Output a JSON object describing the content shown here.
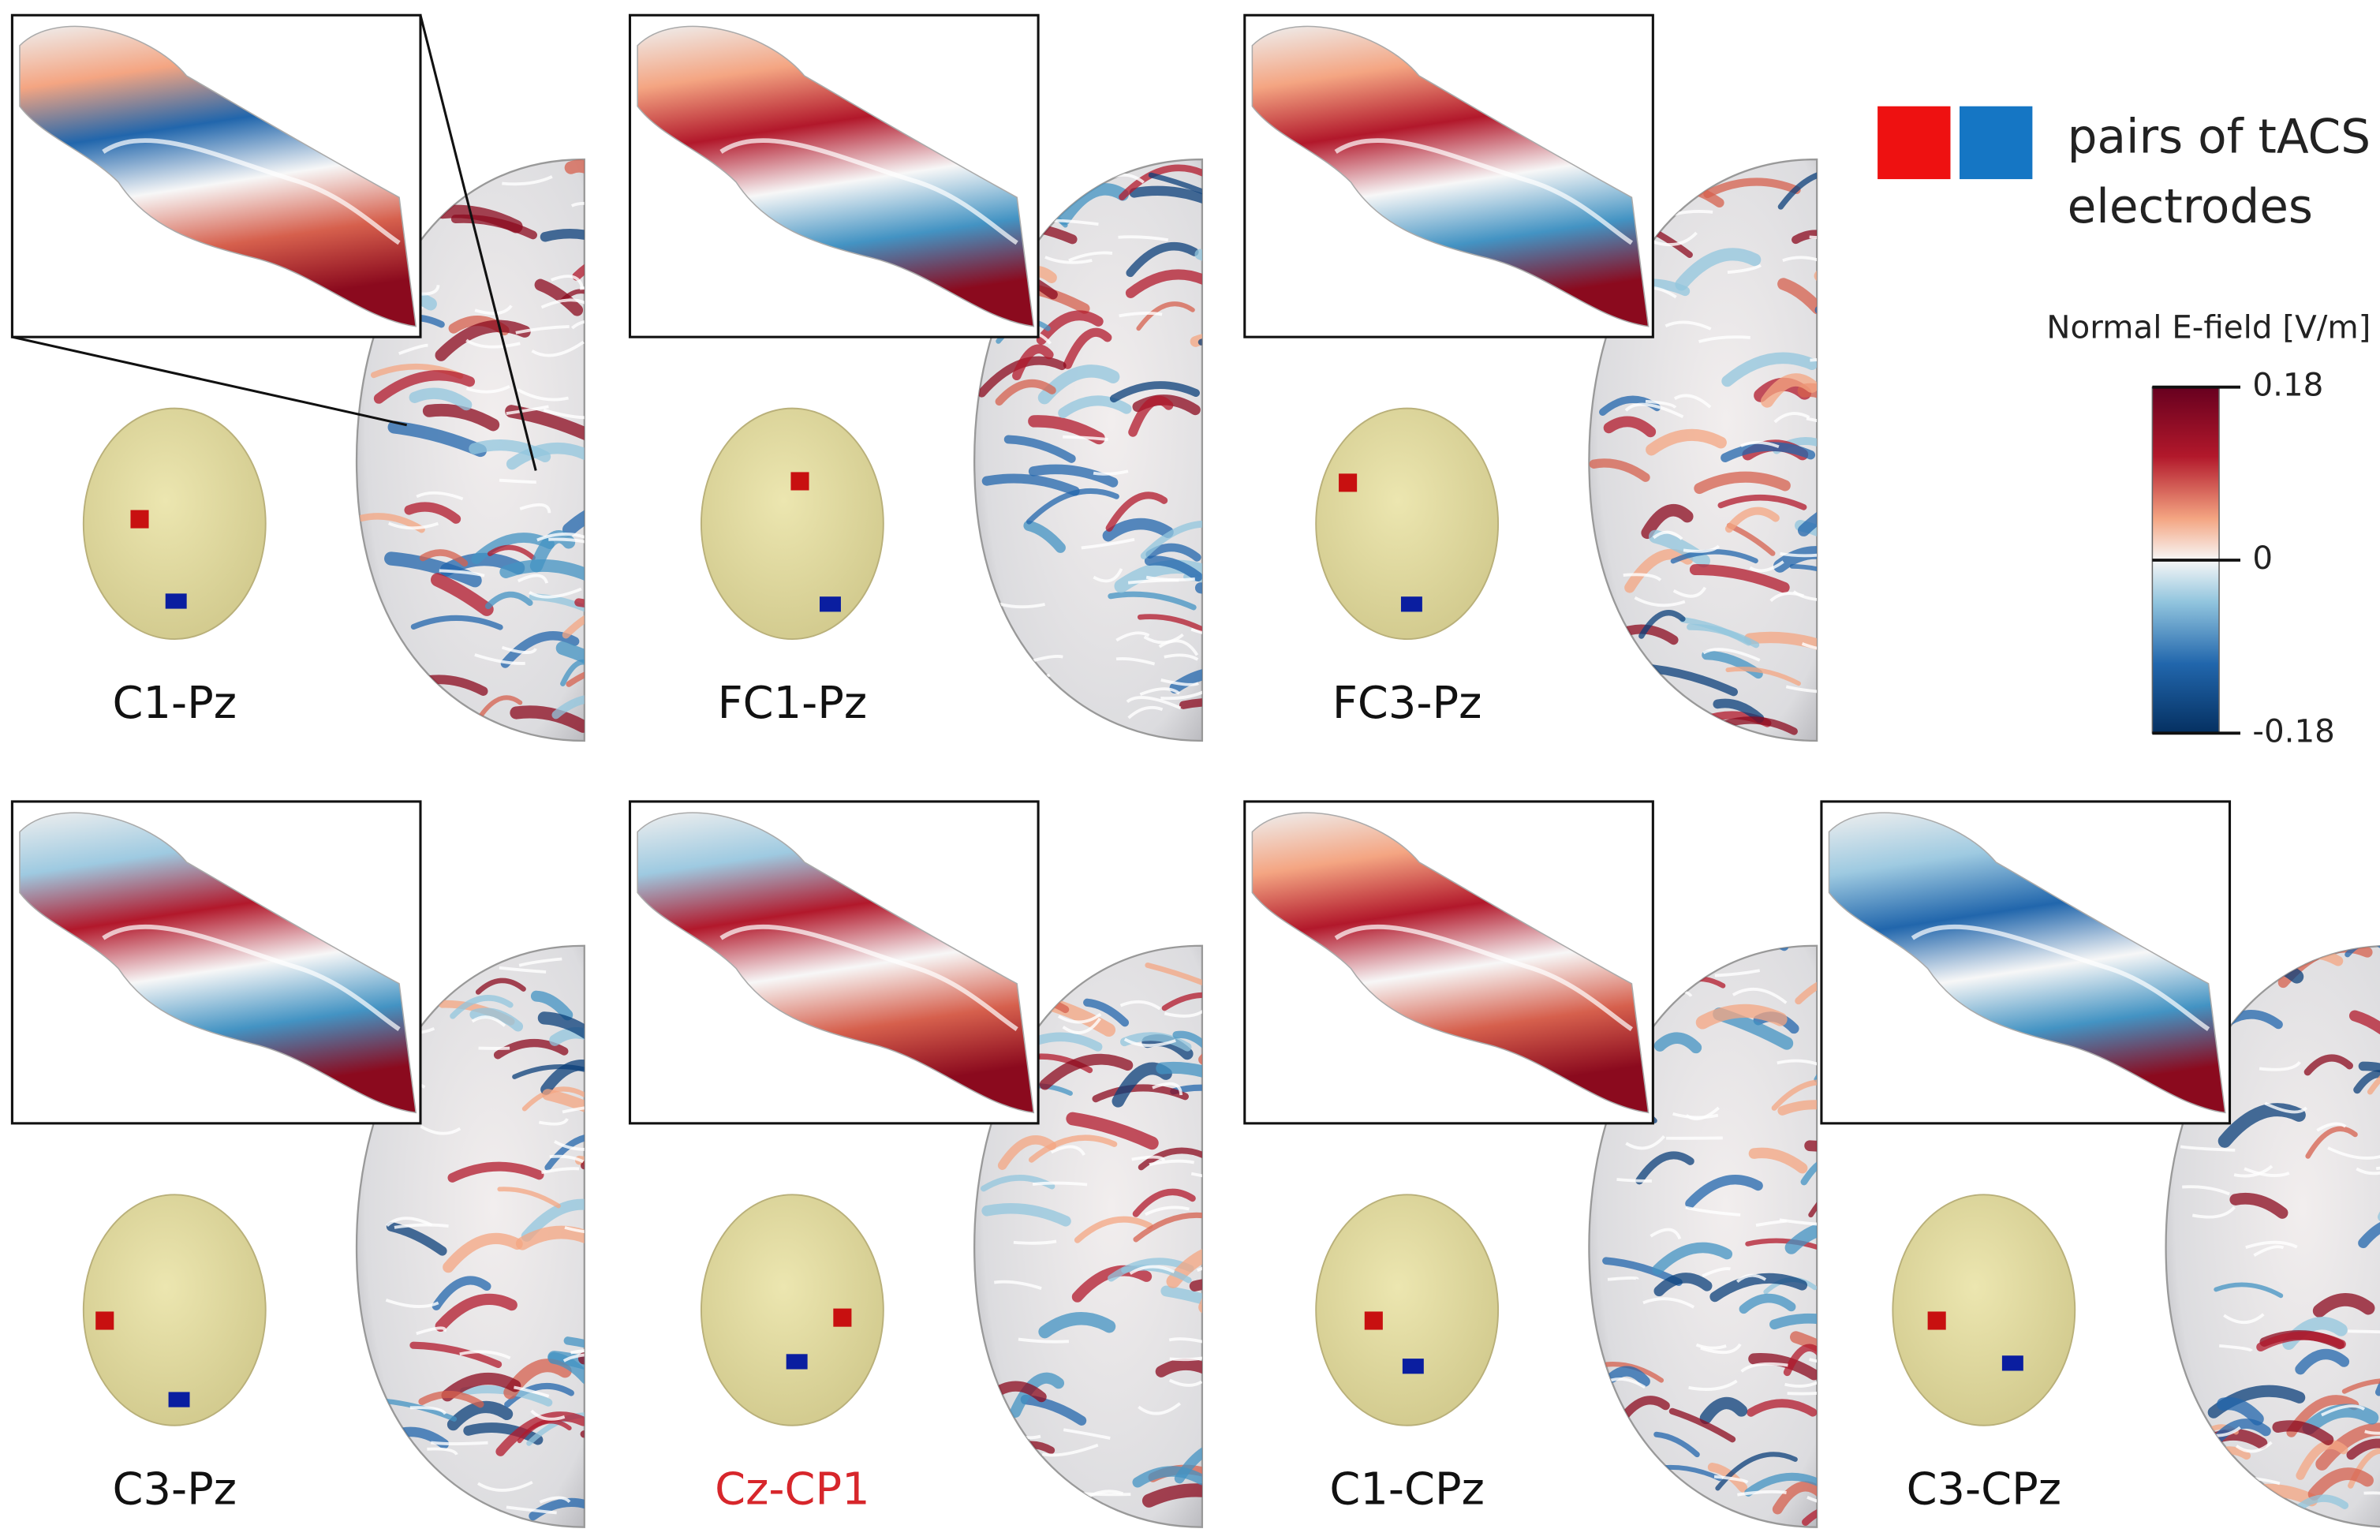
{
  "panels": [
    {
      "label": "C1-Pz",
      "color": "#111111"
    },
    {
      "label": "FC1-Pz",
      "color": "#111111"
    },
    {
      "label": "FC3-Pz",
      "color": "#111111"
    },
    {
      "label": "C3-Pz",
      "color": "#111111"
    },
    {
      "label": "Cz-CP1",
      "color": "#d7262b"
    },
    {
      "label": "C1-CPz",
      "color": "#111111"
    },
    {
      "label": "C3-CPz",
      "color": "#111111"
    }
  ],
  "legend": {
    "lines": [
      "pairs of tACS",
      "electrodes"
    ],
    "colors": [
      "#ee1111",
      "#1576c4"
    ]
  },
  "colorbar": {
    "title": "Normal E-field [V/m]",
    "lim": [
      -0.18,
      0.18
    ],
    "ticks": [
      0.18,
      0,
      -0.18
    ]
  }
}
